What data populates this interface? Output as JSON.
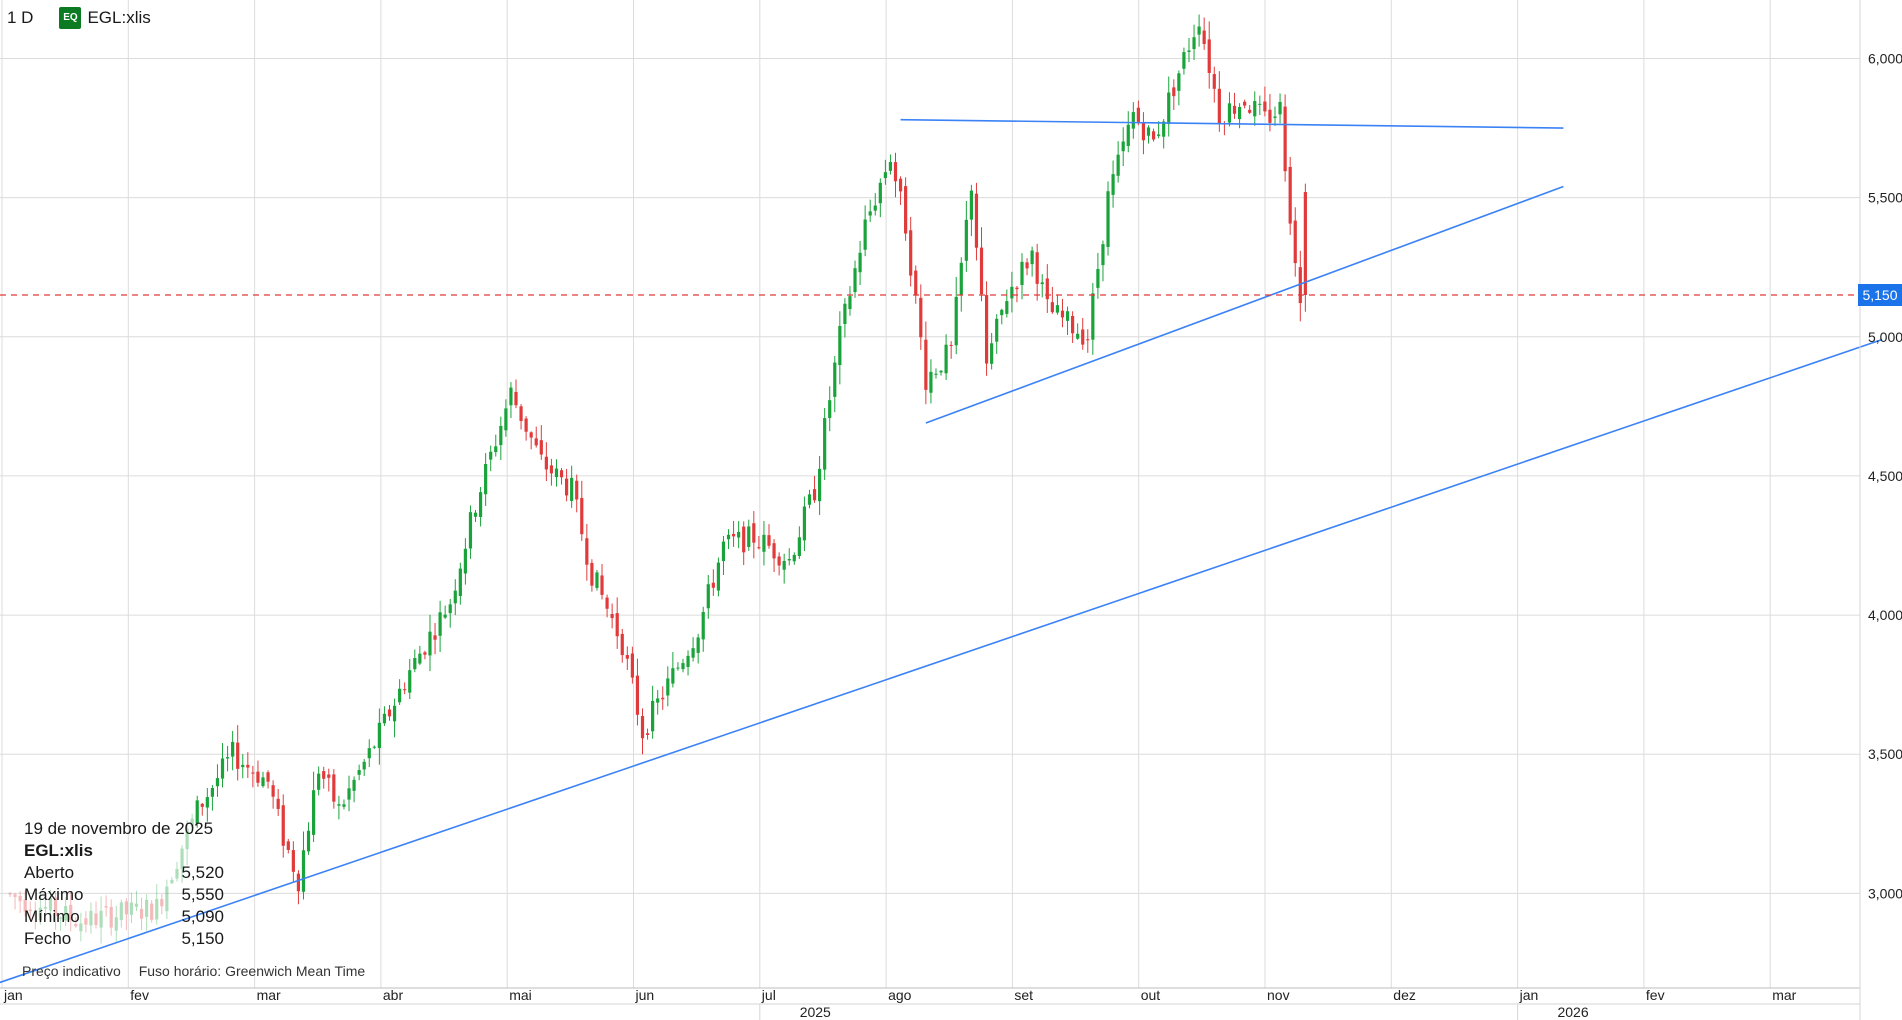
{
  "header": {
    "interval": "1 D",
    "badge": "EQ",
    "symbol": "EGL:xlis"
  },
  "info_panel": {
    "date": "19 de novembro de 2025",
    "symbol": "EGL:xlis",
    "rows": [
      {
        "label": "Aberto",
        "value": "5,520"
      },
      {
        "label": "Máximo",
        "value": "5,550"
      },
      {
        "label": "Mínimo",
        "value": "5,090"
      },
      {
        "label": "Fecho",
        "value": "5,150"
      }
    ],
    "footer_left": "Preço indicativo",
    "footer_right": "Fuso horário: Greenwich Mean Time"
  },
  "colors": {
    "up": "#1aa33a",
    "down": "#e03a3a",
    "trendline": "#3b82f6",
    "price_line": "#e03a3a",
    "price_box": "#1a73e8",
    "grid": "#dcdcdc",
    "badge": "#0b7a22"
  },
  "chart_data": {
    "type": "candlestick",
    "last_price": 5.15,
    "last_price_label": "5,150",
    "y_range": [
      2.66,
      6.21
    ],
    "y_ticks": [
      {
        "value": 3.0,
        "label": "3,000"
      },
      {
        "value": 3.5,
        "label": "3,500"
      },
      {
        "value": 4.0,
        "label": "4,000"
      },
      {
        "value": 4.5,
        "label": "4,500"
      },
      {
        "value": 5.0,
        "label": "5,000"
      },
      {
        "value": 5.5,
        "label": "5,500"
      },
      {
        "value": 6.0,
        "label": "6,000"
      }
    ],
    "x_months": [
      "jan",
      "fev",
      "mar",
      "abr",
      "mai",
      "jun",
      "jul",
      "ago",
      "set",
      "out",
      "nov",
      "dez",
      "jan",
      "fev",
      "mar"
    ],
    "x_years": [
      {
        "label": "2025",
        "month_index": 6
      },
      {
        "label": "2026",
        "month_index": 12
      }
    ],
    "anchors": [
      {
        "t": 0,
        "p": 3.0
      },
      {
        "t": 15,
        "p": 2.9
      },
      {
        "t": 30,
        "p": 2.95
      },
      {
        "t": 38,
        "p": 3.3
      },
      {
        "t": 45,
        "p": 3.5
      },
      {
        "t": 52,
        "p": 3.4
      },
      {
        "t": 55,
        "p": 3.2
      },
      {
        "t": 58,
        "p": 3.05
      },
      {
        "t": 62,
        "p": 3.45
      },
      {
        "t": 66,
        "p": 3.3
      },
      {
        "t": 72,
        "p": 3.5
      },
      {
        "t": 80,
        "p": 3.8
      },
      {
        "t": 88,
        "p": 4.05
      },
      {
        "t": 93,
        "p": 4.4
      },
      {
        "t": 100,
        "p": 4.8
      },
      {
        "t": 106,
        "p": 4.55
      },
      {
        "t": 112,
        "p": 4.45
      },
      {
        "t": 116,
        "p": 4.15
      },
      {
        "t": 122,
        "p": 3.9
      },
      {
        "t": 126,
        "p": 3.58
      },
      {
        "t": 131,
        "p": 3.75
      },
      {
        "t": 137,
        "p": 3.95
      },
      {
        "t": 142,
        "p": 4.25
      },
      {
        "t": 148,
        "p": 4.28
      },
      {
        "t": 155,
        "p": 4.2
      },
      {
        "t": 160,
        "p": 4.45
      },
      {
        "t": 165,
        "p": 5.0
      },
      {
        "t": 170,
        "p": 5.4
      },
      {
        "t": 175,
        "p": 5.65
      },
      {
        "t": 178,
        "p": 5.4
      },
      {
        "t": 182,
        "p": 4.85
      },
      {
        "t": 187,
        "p": 4.95
      },
      {
        "t": 191,
        "p": 5.55
      },
      {
        "t": 194,
        "p": 4.9
      },
      {
        "t": 198,
        "p": 5.15
      },
      {
        "t": 203,
        "p": 5.3
      },
      {
        "t": 206,
        "p": 5.1
      },
      {
        "t": 210,
        "p": 5.05
      },
      {
        "t": 214,
        "p": 5.0
      },
      {
        "t": 218,
        "p": 5.5
      },
      {
        "t": 223,
        "p": 5.8
      },
      {
        "t": 227,
        "p": 5.7
      },
      {
        "t": 232,
        "p": 5.95
      },
      {
        "t": 236,
        "p": 6.15
      },
      {
        "t": 240,
        "p": 5.8
      },
      {
        "t": 245,
        "p": 5.85
      },
      {
        "t": 249,
        "p": 5.78
      },
      {
        "t": 252,
        "p": 5.82
      },
      {
        "t": 255,
        "p": 5.25
      },
      {
        "t": 256,
        "p": 5.15
      }
    ],
    "candle_count": 257,
    "last_candle": {
      "open": 5.52,
      "high": 5.55,
      "low": 5.09,
      "close": 5.15
    },
    "trendlines": [
      {
        "from": {
          "t": 176,
          "p": 5.78
        },
        "to": {
          "t": 307,
          "p": 5.75
        }
      },
      {
        "from": {
          "t": 181,
          "p": 4.69
        },
        "to": {
          "t": 307,
          "p": 5.54
        }
      },
      {
        "from": {
          "t": -2,
          "p": 2.68
        },
        "to": {
          "t": 370,
          "p": 4.99
        }
      }
    ]
  }
}
